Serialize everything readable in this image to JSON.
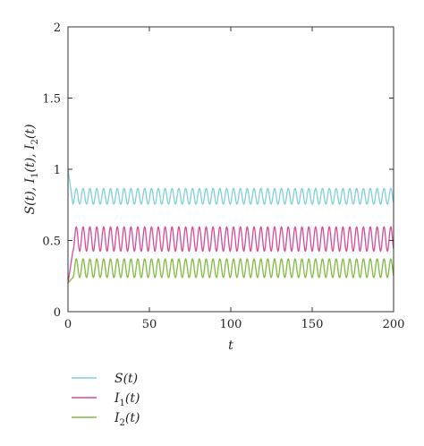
{
  "chart_data": {
    "type": "line",
    "xlabel": "t",
    "ylabel": "S(t), I1(t), I2(t)",
    "xlim": [
      0,
      200
    ],
    "ylim": [
      0,
      2
    ],
    "xticks": [
      0,
      50,
      100,
      150,
      200
    ],
    "yticks": [
      0,
      0.5,
      1,
      1.5,
      2
    ],
    "xtick_labels": [
      "0",
      "50",
      "100",
      "150",
      "200"
    ],
    "ytick_labels": [
      "0",
      "0.5",
      "1",
      "1.5",
      "2"
    ],
    "grid": false,
    "legend_position": "bottom-left",
    "series": [
      {
        "name": "S(t)",
        "color": "#7fcfd9",
        "start": 1.0,
        "mean": 0.81,
        "amplitude": 0.055,
        "period": 4.2,
        "transient_end": 3
      },
      {
        "name": "I1(t)",
        "color": "#d64a9a",
        "start": 0.2,
        "mean": 0.51,
        "amplitude": 0.085,
        "period": 4.2,
        "transient_end": 3
      },
      {
        "name": "I2(t)",
        "color": "#7fba3e",
        "start": 0.2,
        "mean": 0.305,
        "amplitude": 0.065,
        "period": 4.2,
        "transient_end": 3
      }
    ]
  }
}
